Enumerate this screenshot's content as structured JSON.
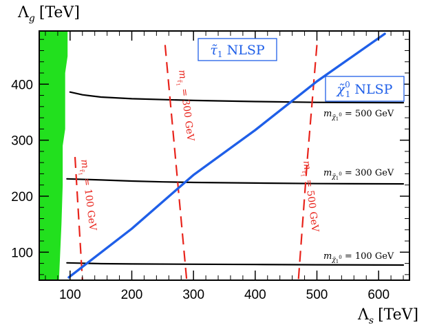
{
  "chart_data": {
    "type": "line",
    "title": "",
    "xlabel": "Λ_s [TeV]",
    "ylabel": "Λ_g [TeV]",
    "xlim": [
      50,
      650
    ],
    "ylim": [
      50,
      495
    ],
    "x_ticks": [
      100,
      200,
      300,
      400,
      500,
      600
    ],
    "y_ticks": [
      100,
      200,
      300,
      400
    ],
    "grid": false,
    "excluded_region": {
      "color": "#22e01e",
      "boundary": [
        [
          96,
          495
        ],
        [
          96,
          450
        ],
        [
          92,
          420
        ],
        [
          92,
          320
        ],
        [
          88,
          290
        ],
        [
          88,
          220
        ],
        [
          86,
          150
        ],
        [
          84,
          100
        ],
        [
          82,
          50
        ]
      ]
    },
    "series": [
      {
        "name": "m_χ̃1⁰ = 100 GeV",
        "style": "solid",
        "color": "#000000",
        "x": [
          95,
          150,
          200,
          300,
          400,
          500,
          640
        ],
        "y": [
          81,
          79.5,
          79,
          78.5,
          78,
          77.5,
          77
        ]
      },
      {
        "name": "m_χ̃1⁰ = 300 GeV",
        "style": "solid",
        "color": "#000000",
        "x": [
          95,
          150,
          200,
          250,
          300,
          400,
          500,
          640
        ],
        "y": [
          231,
          229,
          227,
          225.5,
          224.5,
          223.5,
          222.5,
          222
        ]
      },
      {
        "name": "m_χ̃1⁰ = 500 GeV",
        "style": "solid",
        "color": "#000000",
        "x": [
          100,
          120,
          150,
          200,
          300,
          400,
          500,
          640
        ],
        "y": [
          386,
          381,
          377,
          374,
          371,
          369,
          367.5,
          367
        ]
      },
      {
        "name": "m_τ̃1 = 100 GeV",
        "style": "dashed",
        "color": "#e8231b",
        "x": [
          108,
          114,
          120
        ],
        "y": [
          270,
          160,
          50
        ]
      },
      {
        "name": "m_τ̃1 = 300 GeV",
        "style": "dashed",
        "color": "#e8231b",
        "x": [
          254,
          271,
          289
        ],
        "y": [
          470,
          265,
          50
        ]
      },
      {
        "name": "m_τ̃1 = 500 GeV",
        "style": "dashed",
        "color": "#e8231b",
        "x": [
          500,
          484,
          470
        ],
        "y": [
          470,
          260,
          50
        ]
      },
      {
        "name": "NLSP boundary",
        "style": "solid",
        "color": "#1f5fe8",
        "x": [
          98,
          200,
          300,
          400,
          500,
          610
        ],
        "y": [
          55,
          142,
          238,
          318,
          405,
          490
        ]
      }
    ],
    "region_labels": [
      {
        "text": "τ̃1 NLSP",
        "color": "#1f5fe8"
      },
      {
        "text": "χ̃1⁰ NLSP",
        "color": "#1f5fe8"
      }
    ],
    "line_labels": {
      "neutralino_100": "m_χ̃1⁰ = 100 GeV",
      "neutralino_300": "m_χ̃1⁰ = 300 GeV",
      "neutralino_500": "m_χ̃1⁰ = 500 GeV",
      "stau_100": "m_τ̃1 = 100 GeV",
      "stau_300": "m_τ̃1 = 300 GeV",
      "stau_500": "m_τ̃1 = 500 GeV"
    }
  }
}
